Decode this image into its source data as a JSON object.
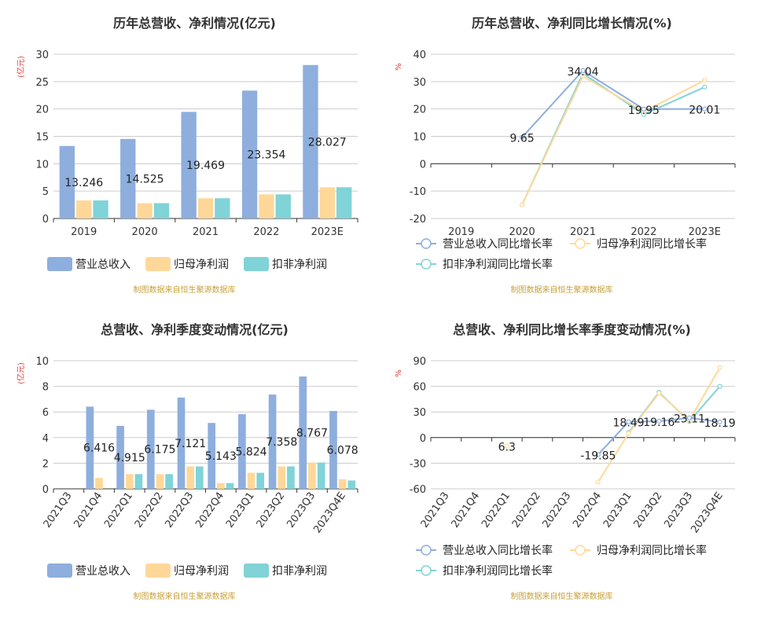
{
  "colors": {
    "revenue": "#8eaedd",
    "netprofit": "#ffd899",
    "deducted": "#80d3d7",
    "title": "#333333",
    "axis": "#333333",
    "grid": "#cccccc",
    "unit": "#e03b3b",
    "source": "#c9a23a"
  },
  "source_note": "制图数据来自恒生聚源数据库",
  "chart_data": [
    {
      "type": "bar",
      "title": "历年总营收、净利情况(亿元)",
      "ylabel": "(亿元)",
      "ylim": [
        0,
        30
      ],
      "yticks": [
        0,
        5,
        10,
        15,
        20,
        25,
        30
      ],
      "categories": [
        "2019",
        "2020",
        "2021",
        "2022",
        "2023E"
      ],
      "series": [
        {
          "name": "营业总收入",
          "values": [
            13.246,
            14.525,
            19.469,
            23.354,
            28.027
          ]
        },
        {
          "name": "归母净利润",
          "values": [
            3.3,
            2.8,
            3.7,
            4.4,
            5.7
          ]
        },
        {
          "name": "扣非净利润",
          "values": [
            3.3,
            2.8,
            3.7,
            4.4,
            5.7
          ]
        }
      ],
      "data_labels": [
        "13.246",
        "14.525",
        "19.469",
        "23.354",
        "28.027"
      ],
      "legend_position": "bottom"
    },
    {
      "type": "line",
      "title": "历年总营收、净利同比增长情况(%)",
      "ylabel": "%",
      "ylim": [
        -20,
        40
      ],
      "yticks": [
        -20,
        -10,
        0,
        10,
        20,
        30,
        40
      ],
      "categories": [
        "2019",
        "2020",
        "2021",
        "2022",
        "2023E"
      ],
      "series": [
        {
          "name": "营业总收入同比增长率",
          "values": [
            null,
            9.65,
            34.04,
            19.95,
            20.01
          ]
        },
        {
          "name": "归母净利润同比增长率",
          "values": [
            null,
            -15,
            32,
            19,
            30.5
          ]
        },
        {
          "name": "扣非净利润同比增长率",
          "values": [
            null,
            -15,
            33,
            18,
            28
          ]
        }
      ],
      "data_labels": [
        null,
        "9.65",
        "34.04",
        "19.95",
        "20.01"
      ],
      "legend_position": "bottom"
    },
    {
      "type": "bar",
      "title": "总营收、净利季度变动情况(亿元)",
      "ylabel": "(亿元)",
      "ylim": [
        0,
        10
      ],
      "yticks": [
        0,
        2,
        4,
        6,
        8,
        10
      ],
      "categories": [
        "2021Q3",
        "2021Q4",
        "2022Q1",
        "2022Q2",
        "2022Q3",
        "2022Q4",
        "2023Q1",
        "2023Q2",
        "2023Q3",
        "2023Q4E"
      ],
      "series": [
        {
          "name": "营业总收入",
          "values": [
            null,
            6.416,
            4.915,
            6.175,
            7.121,
            5.143,
            5.824,
            7.358,
            8.767,
            6.078
          ]
        },
        {
          "name": "归母净利润",
          "values": [
            null,
            0.85,
            1.15,
            1.15,
            1.75,
            0.45,
            1.25,
            1.75,
            2.05,
            0.75
          ]
        },
        {
          "name": "扣非净利润",
          "values": [
            null,
            null,
            1.15,
            1.15,
            1.75,
            0.45,
            1.25,
            1.75,
            2.05,
            0.65
          ]
        }
      ],
      "data_labels": [
        null,
        "6.416",
        "4.915",
        "6.175",
        "7.121",
        "5.143",
        "5.824",
        "7.358",
        "8.767",
        "6.078"
      ],
      "legend_position": "bottom"
    },
    {
      "type": "line",
      "title": "总营收、净利同比增长率季度变动情况(%)",
      "ylabel": "%",
      "ylim": [
        -60,
        90
      ],
      "yticks": [
        -60,
        -30,
        0,
        30,
        60,
        90
      ],
      "categories": [
        "2021Q3",
        "2021Q4",
        "2022Q1",
        "2022Q2",
        "2022Q3",
        "2022Q4",
        "2023Q1",
        "2023Q2",
        "2023Q3",
        "2023Q4E"
      ],
      "series": [
        {
          "name": "营业总收入同比增长率",
          "values": [
            null,
            null,
            null,
            null,
            null,
            -19.85,
            18.49,
            19.16,
            23.11,
            18.19
          ]
        },
        {
          "name": "归母净利润同比增长率",
          "values": [
            null,
            null,
            -10,
            null,
            null,
            -52,
            5,
            52,
            20,
            82
          ]
        },
        {
          "name": "扣非净利润同比增长率",
          "values": [
            null,
            null,
            null,
            null,
            null,
            null,
            6,
            53,
            19,
            60
          ]
        }
      ],
      "data_labels": [
        null,
        null,
        "6.3",
        null,
        null,
        "-19.85",
        "18.49",
        "19.16",
        "23.11",
        "18.19"
      ],
      "legend_position": "bottom"
    }
  ]
}
